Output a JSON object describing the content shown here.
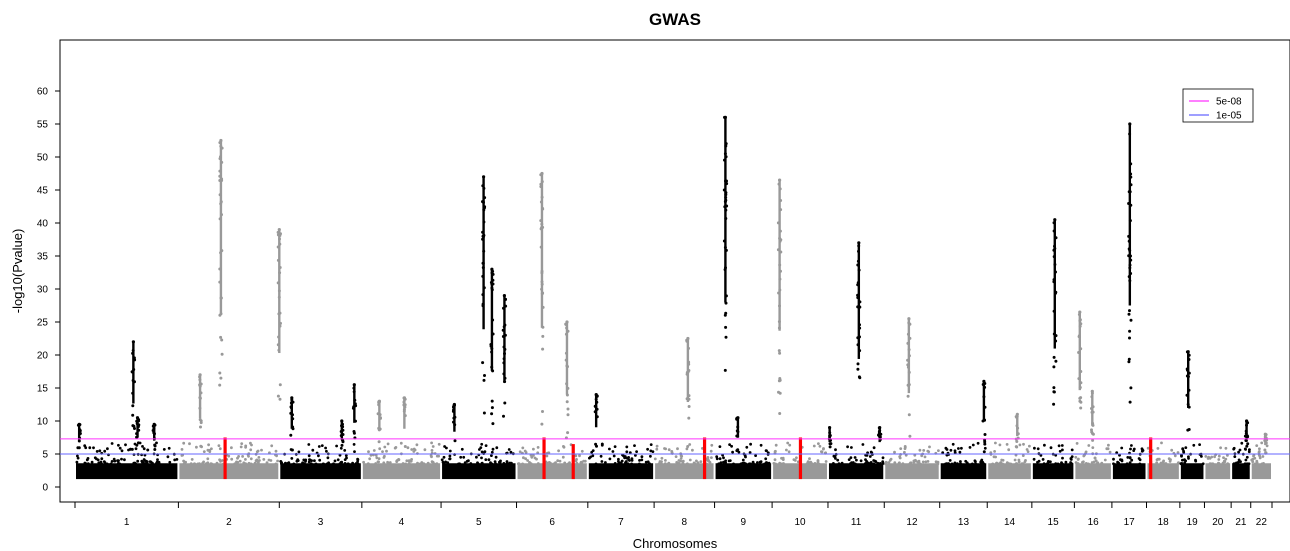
{
  "chart_data": {
    "type": "scatter",
    "title": "GWAS",
    "xlabel": "Chromosomes",
    "ylabel": "-log10(Pvalue)",
    "ylim": [
      -2,
      69
    ],
    "yticks": [
      0,
      5,
      10,
      15,
      20,
      25,
      30,
      35,
      40,
      45,
      50,
      55,
      60
    ],
    "grid": false,
    "legend_placement": "top-right",
    "thresholds": [
      {
        "name": "5e-08",
        "value": 7.3,
        "color": "#ff33ff"
      },
      {
        "name": "1e-05",
        "value": 5.0,
        "color": "#6666ff"
      }
    ],
    "colors": {
      "odd": "#000000",
      "even": "#999999",
      "highlight": "#ff0000"
    },
    "chromosomes": [
      {
        "label": "1",
        "start": 0,
        "end": 248
      },
      {
        "label": "2",
        "start": 248,
        "end": 490
      },
      {
        "label": "3",
        "start": 490,
        "end": 688
      },
      {
        "label": "4",
        "start": 688,
        "end": 878
      },
      {
        "label": "5",
        "start": 878,
        "end": 1059
      },
      {
        "label": "6",
        "start": 1059,
        "end": 1230
      },
      {
        "label": "7",
        "start": 1230,
        "end": 1389
      },
      {
        "label": "8",
        "start": 1389,
        "end": 1534
      },
      {
        "label": "9",
        "start": 1534,
        "end": 1672
      },
      {
        "label": "10",
        "start": 1672,
        "end": 1806
      },
      {
        "label": "11",
        "start": 1806,
        "end": 1941
      },
      {
        "label": "12",
        "start": 1941,
        "end": 2074
      },
      {
        "label": "13",
        "start": 2074,
        "end": 2188
      },
      {
        "label": "14",
        "start": 2188,
        "end": 2295
      },
      {
        "label": "15",
        "start": 2295,
        "end": 2397
      },
      {
        "label": "16",
        "start": 2397,
        "end": 2487
      },
      {
        "label": "17",
        "start": 2487,
        "end": 2570
      },
      {
        "label": "18",
        "start": 2570,
        "end": 2650
      },
      {
        "label": "19",
        "start": 2650,
        "end": 2709
      },
      {
        "label": "20",
        "start": 2709,
        "end": 2773
      },
      {
        "label": "21",
        "start": 2773,
        "end": 2820
      },
      {
        "label": "22",
        "start": 2820,
        "end": 2871
      }
    ],
    "peaks": [
      {
        "x": 10,
        "y": 9.5,
        "c": 0
      },
      {
        "x": 140,
        "y": 22,
        "c": 0
      },
      {
        "x": 150,
        "y": 10.5,
        "c": 0
      },
      {
        "x": 190,
        "y": 9.5,
        "c": 0
      },
      {
        "x": 300,
        "y": 17,
        "c": 1
      },
      {
        "x": 350,
        "y": 52.5,
        "c": 1
      },
      {
        "x": 490,
        "y": 39,
        "c": 1
      },
      {
        "x": 520,
        "y": 13.5,
        "c": 0
      },
      {
        "x": 640,
        "y": 10,
        "c": 0
      },
      {
        "x": 670,
        "y": 15.5,
        "c": 0
      },
      {
        "x": 730,
        "y": 13,
        "c": 1
      },
      {
        "x": 790,
        "y": 13.5,
        "c": 1
      },
      {
        "x": 910,
        "y": 12.5,
        "c": 0
      },
      {
        "x": 980,
        "y": 47,
        "c": 0
      },
      {
        "x": 1000,
        "y": 33,
        "c": 0
      },
      {
        "x": 1030,
        "y": 29,
        "c": 0
      },
      {
        "x": 1120,
        "y": 47.5,
        "c": 1
      },
      {
        "x": 1180,
        "y": 25,
        "c": 1
      },
      {
        "x": 1250,
        "y": 14,
        "c": 0
      },
      {
        "x": 1470,
        "y": 22.5,
        "c": 1
      },
      {
        "x": 1560,
        "y": 56,
        "c": 0
      },
      {
        "x": 1590,
        "y": 10.5,
        "c": 0
      },
      {
        "x": 1690,
        "y": 46.5,
        "c": 1
      },
      {
        "x": 1810,
        "y": 9,
        "c": 0
      },
      {
        "x": 1880,
        "y": 37,
        "c": 0
      },
      {
        "x": 1930,
        "y": 9,
        "c": 0
      },
      {
        "x": 2000,
        "y": 25.5,
        "c": 1
      },
      {
        "x": 2180,
        "y": 16,
        "c": 0
      },
      {
        "x": 2260,
        "y": 11,
        "c": 1
      },
      {
        "x": 2350,
        "y": 40.5,
        "c": 0
      },
      {
        "x": 2410,
        "y": 26.5,
        "c": 1
      },
      {
        "x": 2440,
        "y": 14.5,
        "c": 1
      },
      {
        "x": 2530,
        "y": 55,
        "c": 0
      },
      {
        "x": 2670,
        "y": 20.5,
        "c": 0
      },
      {
        "x": 2810,
        "y": 10,
        "c": 0
      },
      {
        "x": 2855,
        "y": 8,
        "c": 1
      }
    ],
    "highlight_regions": [
      {
        "x": 360,
        "y": 7.5
      },
      {
        "x": 1125,
        "y": 7.5
      },
      {
        "x": 1195,
        "y": 6.5
      },
      {
        "x": 1510,
        "y": 7.5
      },
      {
        "x": 1740,
        "y": 7.5
      },
      {
        "x": 2580,
        "y": 7.5
      }
    ]
  }
}
